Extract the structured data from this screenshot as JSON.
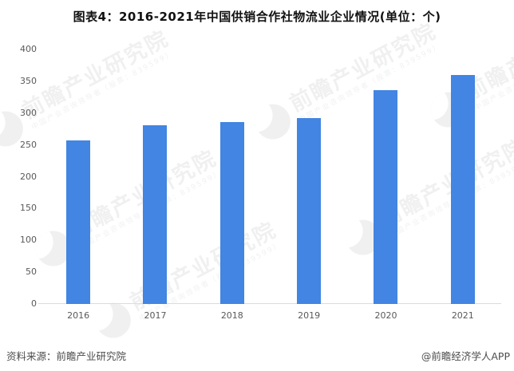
{
  "title": "图表4：2016-2021年中国供销合作社物流业企业情况(单位：个)",
  "footer": {
    "source": "资料来源：前瞻产业研究院",
    "credit": "@前瞻经济学人APP"
  },
  "watermark": {
    "brand": "前瞻产业研究院",
    "tagline": "中国产业咨询领导者（股票：839599）"
  },
  "colors": {
    "bar": "#4285E2",
    "axis_line": "#DCDCDC",
    "tick_text": "#595959",
    "title_text": "#111111",
    "footer_text": "#4D4D4D",
    "watermark": "#8F959B"
  },
  "chart_data": {
    "type": "bar",
    "title": "图表4：2016-2021年中国供销合作社物流业企业情况(单位：个)",
    "categories": [
      "2016",
      "2017",
      "2018",
      "2019",
      "2020",
      "2021"
    ],
    "values": [
      257,
      281,
      286,
      292,
      336,
      360
    ],
    "xlabel": "",
    "ylabel": "",
    "ylim": [
      0,
      400
    ],
    "yticks": [
      0,
      50,
      100,
      150,
      200,
      250,
      300,
      350,
      400
    ],
    "grid": false,
    "legend": false,
    "bar_color": "#4285E2"
  }
}
